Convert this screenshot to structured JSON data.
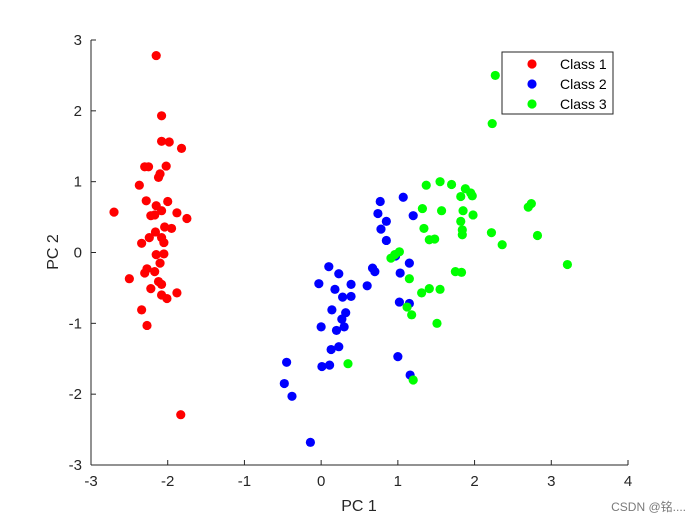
{
  "chart_data": {
    "type": "scatter",
    "xlabel": "PC 1",
    "ylabel": "PC 2",
    "xlim": [
      -3,
      4
    ],
    "ylim": [
      -3,
      3
    ],
    "xticks": [
      -3,
      -2,
      -1,
      0,
      1,
      2,
      3,
      4
    ],
    "yticks": [
      -3,
      -2,
      -1,
      0,
      1,
      2,
      3
    ],
    "grid": false,
    "legend_position": "top-right",
    "series": [
      {
        "name": "Class 1",
        "color": "#ff0000",
        "points": [
          [
            -2.15,
            2.78
          ],
          [
            -2.08,
            1.93
          ],
          [
            -2.08,
            1.57
          ],
          [
            -1.98,
            1.56
          ],
          [
            -1.82,
            1.47
          ],
          [
            -2.25,
            1.21
          ],
          [
            -2.3,
            1.21
          ],
          [
            -2.02,
            1.22
          ],
          [
            -2.1,
            1.11
          ],
          [
            -2.12,
            1.06
          ],
          [
            -2.37,
            0.95
          ],
          [
            -2.28,
            0.73
          ],
          [
            -2.0,
            0.72
          ],
          [
            -2.15,
            0.66
          ],
          [
            -2.7,
            0.57
          ],
          [
            -2.08,
            0.59
          ],
          [
            -2.17,
            0.53
          ],
          [
            -1.88,
            0.56
          ],
          [
            -2.22,
            0.52
          ],
          [
            -1.75,
            0.48
          ],
          [
            -2.04,
            0.36
          ],
          [
            -1.95,
            0.34
          ],
          [
            -2.16,
            0.29
          ],
          [
            -2.24,
            0.21
          ],
          [
            -2.08,
            0.21
          ],
          [
            -2.34,
            0.13
          ],
          [
            -2.05,
            0.14
          ],
          [
            -2.15,
            -0.03
          ],
          [
            -2.05,
            -0.02
          ],
          [
            -2.1,
            -0.15
          ],
          [
            -2.27,
            -0.23
          ],
          [
            -2.3,
            -0.29
          ],
          [
            -2.17,
            -0.27
          ],
          [
            -2.5,
            -0.37
          ],
          [
            -2.12,
            -0.41
          ],
          [
            -2.08,
            -0.45
          ],
          [
            -2.22,
            -0.51
          ],
          [
            -2.08,
            -0.6
          ],
          [
            -1.88,
            -0.57
          ],
          [
            -2.34,
            -0.81
          ],
          [
            -2.01,
            -0.65
          ],
          [
            -2.27,
            -1.03
          ],
          [
            -1.83,
            -2.29
          ]
        ]
      },
      {
        "name": "Class 2",
        "color": "#0000ff",
        "points": [
          [
            1.07,
            0.78
          ],
          [
            0.77,
            0.72
          ],
          [
            0.74,
            0.55
          ],
          [
            0.85,
            0.44
          ],
          [
            1.2,
            0.52
          ],
          [
            0.78,
            0.33
          ],
          [
            0.85,
            0.17
          ],
          [
            0.97,
            -0.05
          ],
          [
            1.15,
            -0.15
          ],
          [
            0.67,
            -0.22
          ],
          [
            0.7,
            -0.27
          ],
          [
            1.03,
            -0.29
          ],
          [
            0.1,
            -0.2
          ],
          [
            0.23,
            -0.3
          ],
          [
            0.39,
            -0.45
          ],
          [
            0.6,
            -0.47
          ],
          [
            -0.03,
            -0.44
          ],
          [
            0.18,
            -0.52
          ],
          [
            0.28,
            -0.63
          ],
          [
            0.39,
            -0.62
          ],
          [
            1.02,
            -0.7
          ],
          [
            1.15,
            -0.72
          ],
          [
            0.14,
            -0.81
          ],
          [
            0.32,
            -0.85
          ],
          [
            0.27,
            -0.94
          ],
          [
            0.0,
            -1.05
          ],
          [
            0.3,
            -1.05
          ],
          [
            0.2,
            -1.1
          ],
          [
            0.23,
            -1.33
          ],
          [
            0.13,
            -1.37
          ],
          [
            0.01,
            -1.61
          ],
          [
            0.11,
            -1.59
          ],
          [
            -0.45,
            -1.55
          ],
          [
            -0.48,
            -1.85
          ],
          [
            -0.38,
            -2.03
          ],
          [
            -0.14,
            -2.68
          ],
          [
            1.0,
            -1.47
          ],
          [
            1.16,
            -1.73
          ]
        ]
      },
      {
        "name": "Class 3",
        "color": "#00ff00",
        "points": [
          [
            2.27,
            2.5
          ],
          [
            2.23,
            1.82
          ],
          [
            1.55,
            1.0
          ],
          [
            1.7,
            0.96
          ],
          [
            1.37,
            0.95
          ],
          [
            1.88,
            0.9
          ],
          [
            1.95,
            0.84
          ],
          [
            1.82,
            0.79
          ],
          [
            1.97,
            0.8
          ],
          [
            1.85,
            0.59
          ],
          [
            1.32,
            0.62
          ],
          [
            1.57,
            0.59
          ],
          [
            1.98,
            0.53
          ],
          [
            1.82,
            0.44
          ],
          [
            1.34,
            0.34
          ],
          [
            1.84,
            0.32
          ],
          [
            1.84,
            0.25
          ],
          [
            2.22,
            0.28
          ],
          [
            1.41,
            0.18
          ],
          [
            1.48,
            0.19
          ],
          [
            2.36,
            0.11
          ],
          [
            2.7,
            0.64
          ],
          [
            2.74,
            0.69
          ],
          [
            2.82,
            0.24
          ],
          [
            3.21,
            -0.17
          ],
          [
            1.02,
            0.01
          ],
          [
            0.96,
            -0.03
          ],
          [
            0.91,
            -0.08
          ],
          [
            1.75,
            -0.27
          ],
          [
            1.83,
            -0.28
          ],
          [
            1.15,
            -0.37
          ],
          [
            1.31,
            -0.57
          ],
          [
            1.41,
            -0.51
          ],
          [
            1.55,
            -0.52
          ],
          [
            1.12,
            -0.77
          ],
          [
            1.18,
            -0.88
          ],
          [
            1.51,
            -1.0
          ],
          [
            0.35,
            -1.57
          ],
          [
            1.2,
            -1.8
          ],
          [
            2.44,
            2.48
          ]
        ]
      }
    ]
  },
  "watermark": "CSDN @铭....",
  "colors": {
    "axis": "#262626",
    "background": "#ffffff"
  }
}
